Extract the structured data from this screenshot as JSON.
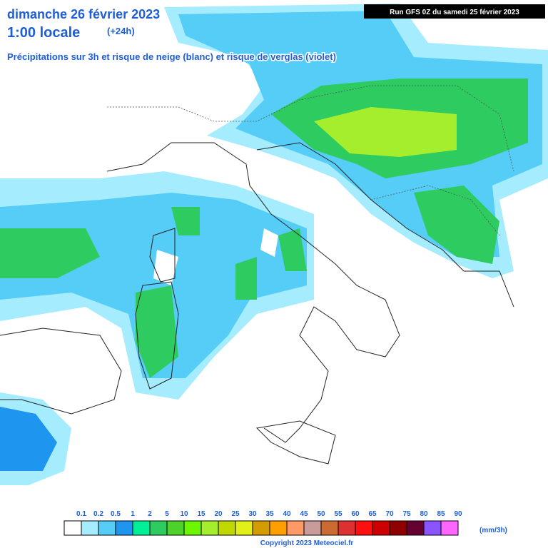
{
  "header": {
    "date": "dimanche 26 février 2023",
    "time": "1:00 locale",
    "offset": "(+24h)",
    "subtitle": "Précipitations sur 3h et risque de neige (blanc) et risque de verglas (violet)",
    "run": "Run GFS 0Z du samedi 25 février 2023"
  },
  "legend": {
    "labels": [
      "0.1",
      "0.2",
      "0.5",
      "1",
      "2",
      "5",
      "10",
      "15",
      "20",
      "25",
      "30",
      "35",
      "40",
      "45",
      "50",
      "55",
      "60",
      "65",
      "70",
      "75",
      "80",
      "85",
      "90"
    ],
    "colors": [
      "#ffffff",
      "#a6ecff",
      "#55cdf7",
      "#1e96f0",
      "#00f09a",
      "#2ecc60",
      "#4ed12a",
      "#6cf700",
      "#a4ee2e",
      "#c0d800",
      "#e2ef18",
      "#d49c00",
      "#ffa000",
      "#ff9a66",
      "#c99b9b",
      "#cc6a33",
      "#dd3030",
      "#ff1010",
      "#cc0000",
      "#8e0000",
      "#650030",
      "#8a55ff",
      "#ff66ff"
    ],
    "unit": "(mm/3h)"
  },
  "footer": {
    "copyright": "Copyright 2023 Meteociel.fr"
  }
}
